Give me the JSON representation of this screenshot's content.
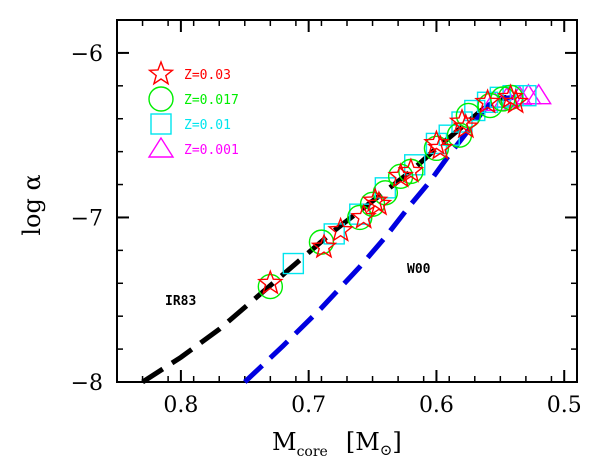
{
  "chart_data": {
    "type": "scatter",
    "title": "",
    "xlabel": "M",
    "xlabel_sub": "core",
    "xlabel_unit_open": "[M",
    "xlabel_unit_sym": "⊙",
    "xlabel_unit_close": "]",
    "ylabel": "log α",
    "xlim": [
      0.85,
      0.49
    ],
    "ylim": [
      -8.0,
      -5.8
    ],
    "x_inverted": true,
    "x_ticks": [
      0.8,
      0.7,
      0.6,
      0.5
    ],
    "x_tick_labels": [
      "0.8",
      "0.7",
      "0.6",
      "0.5"
    ],
    "y_ticks": [
      -8,
      -7,
      -6
    ],
    "y_tick_labels": [
      "−8",
      "−7",
      "−6"
    ],
    "grid": false,
    "legend_position": "top-left",
    "series": [
      {
        "name": "Z=0.03",
        "marker": "star",
        "color": "#ff0000",
        "x": [
          0.73,
          0.688,
          0.675,
          0.657,
          0.648,
          0.645,
          0.628,
          0.62,
          0.6,
          0.597,
          0.58,
          0.577,
          0.56,
          0.542,
          0.538
        ],
        "y": [
          -7.4,
          -7.18,
          -7.08,
          -7.0,
          -6.9,
          -6.92,
          -6.75,
          -6.72,
          -6.55,
          -6.58,
          -6.42,
          -6.45,
          -6.3,
          -6.27,
          -6.3
        ]
      },
      {
        "name": "Z=0.017",
        "marker": "circle",
        "color": "#00ee00",
        "x": [
          0.73,
          0.69,
          0.66,
          0.65,
          0.64,
          0.628,
          0.62,
          0.6,
          0.582,
          0.575,
          0.558,
          0.548,
          0.542
        ],
        "y": [
          -7.42,
          -7.15,
          -7.0,
          -6.92,
          -6.85,
          -6.75,
          -6.72,
          -6.58,
          -6.5,
          -6.38,
          -6.32,
          -6.28,
          -6.27
        ]
      },
      {
        "name": "Z=0.01",
        "marker": "square",
        "color": "#00e5ee",
        "x": [
          0.712,
          0.68,
          0.66,
          0.64,
          0.617,
          0.6,
          0.59,
          0.58,
          0.57,
          0.56,
          0.55,
          0.54,
          0.53
        ],
        "y": [
          -7.28,
          -7.1,
          -6.98,
          -6.82,
          -6.68,
          -6.55,
          -6.5,
          -6.42,
          -6.35,
          -6.3,
          -6.27,
          -6.26,
          -6.26
        ]
      },
      {
        "name": "Z=0.001",
        "marker": "triangle",
        "color": "#ff00ff",
        "x": [
          0.555,
          0.545,
          0.535,
          0.528,
          0.52
        ],
        "y": [
          -6.3,
          -6.28,
          -6.27,
          -6.26,
          -6.26
        ]
      }
    ],
    "curves": [
      {
        "name": "IR83",
        "color": "#000000",
        "style": "long-dash",
        "x": [
          0.83,
          0.8,
          0.77,
          0.74,
          0.71,
          0.68,
          0.65,
          0.62,
          0.6,
          0.58,
          0.565,
          0.552,
          0.545
        ],
        "y": [
          -8.0,
          -7.85,
          -7.68,
          -7.48,
          -7.28,
          -7.08,
          -6.9,
          -6.72,
          -6.58,
          -6.45,
          -6.35,
          -6.28,
          -6.27
        ]
      },
      {
        "name": "W00",
        "color": "#0000e0",
        "style": "long-dash",
        "x": [
          0.75,
          0.72,
          0.69,
          0.66,
          0.64,
          0.62,
          0.605,
          0.59,
          0.578,
          0.568,
          0.56,
          0.55,
          0.54
        ],
        "y": [
          -8.0,
          -7.78,
          -7.55,
          -7.3,
          -7.12,
          -6.92,
          -6.78,
          -6.62,
          -6.5,
          -6.4,
          -6.32,
          -6.28,
          -6.27
        ]
      }
    ]
  }
}
